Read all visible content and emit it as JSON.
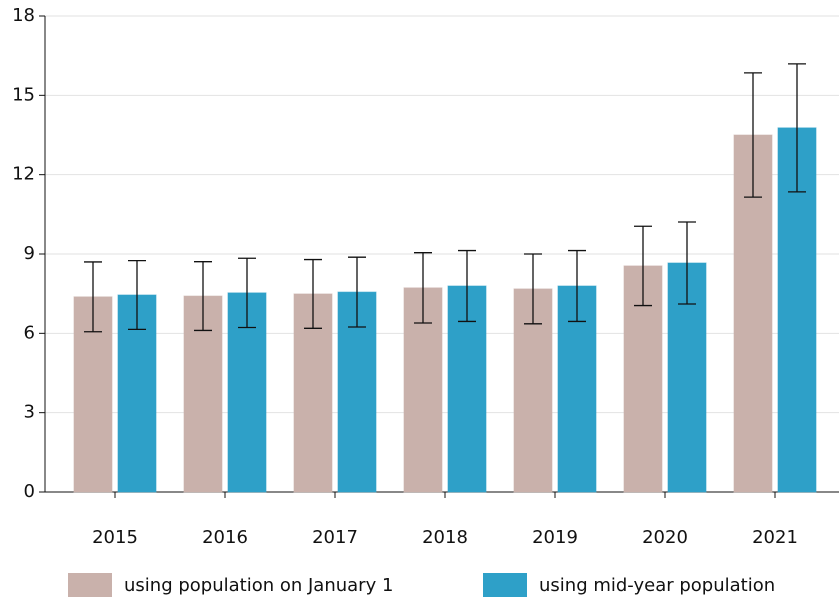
{
  "chart_data": {
    "type": "bar",
    "categories": [
      "2015",
      "2016",
      "2017",
      "2018",
      "2019",
      "2020",
      "2021"
    ],
    "series": [
      {
        "name": "using population on January 1",
        "color": "#c9b1ab",
        "values": [
          7.38,
          7.41,
          7.49,
          7.72,
          7.68,
          8.55,
          13.5
        ],
        "errors": [
          1.32,
          1.3,
          1.3,
          1.33,
          1.32,
          1.5,
          2.35
        ]
      },
      {
        "name": "using mid-year population",
        "color": "#2ea0c8",
        "values": [
          7.45,
          7.53,
          7.56,
          7.79,
          7.79,
          8.66,
          13.77
        ],
        "errors": [
          1.3,
          1.31,
          1.32,
          1.34,
          1.34,
          1.55,
          2.42
        ]
      }
    ],
    "ylim": [
      0,
      18
    ],
    "yticks": [
      0,
      3,
      6,
      9,
      12,
      15,
      18
    ],
    "grid": true,
    "legend": "bottom"
  }
}
